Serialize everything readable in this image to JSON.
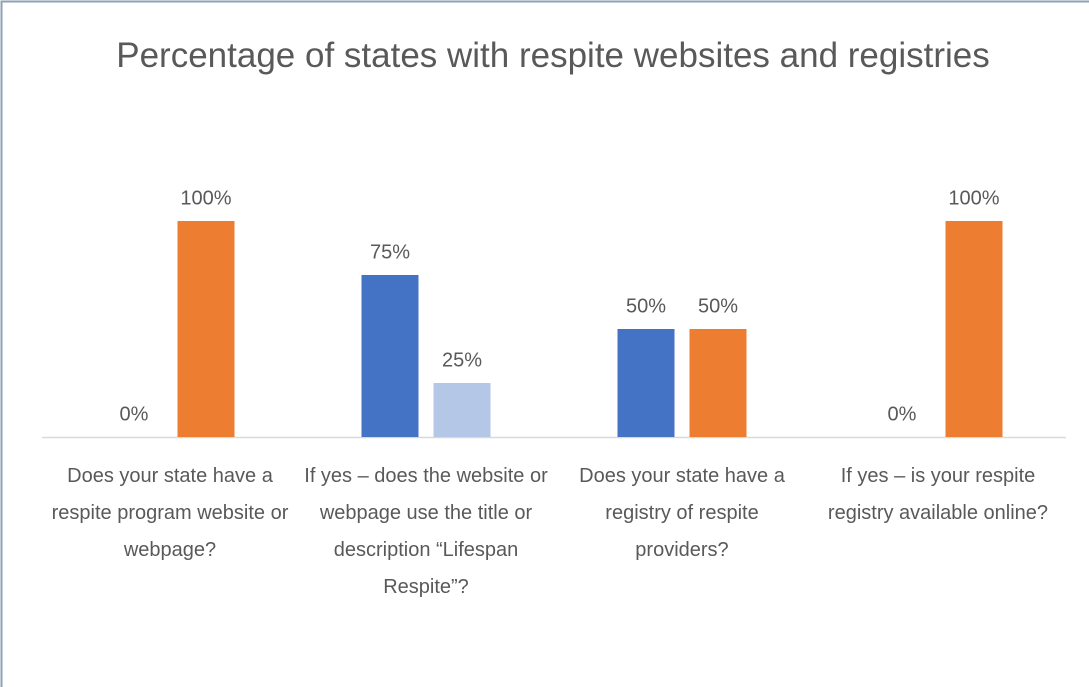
{
  "chart_data": {
    "type": "bar",
    "title": "Percentage of states with respite websites and registries",
    "categories": [
      "Does your state have a respite program website or webpage?",
      "If yes – does the website or webpage use the title or description “Lifespan Respite”?",
      "Does your state have a registry of respite providers?",
      "If yes – is your respite registry available online?"
    ],
    "series": [
      {
        "color": "#4472c4",
        "values": [
          0,
          75,
          50,
          0
        ],
        "value_labels": [
          "0%",
          "75%",
          "50%",
          "0%"
        ]
      },
      {
        "colors": [
          "#ed7d31",
          "#b4c7e7",
          "#ed7d31",
          "#ed7d31"
        ],
        "values": [
          100,
          25,
          50,
          100
        ],
        "value_labels": [
          "100%",
          "25%",
          "50%",
          "100%"
        ]
      }
    ],
    "ylim": [
      0,
      100
    ]
  }
}
